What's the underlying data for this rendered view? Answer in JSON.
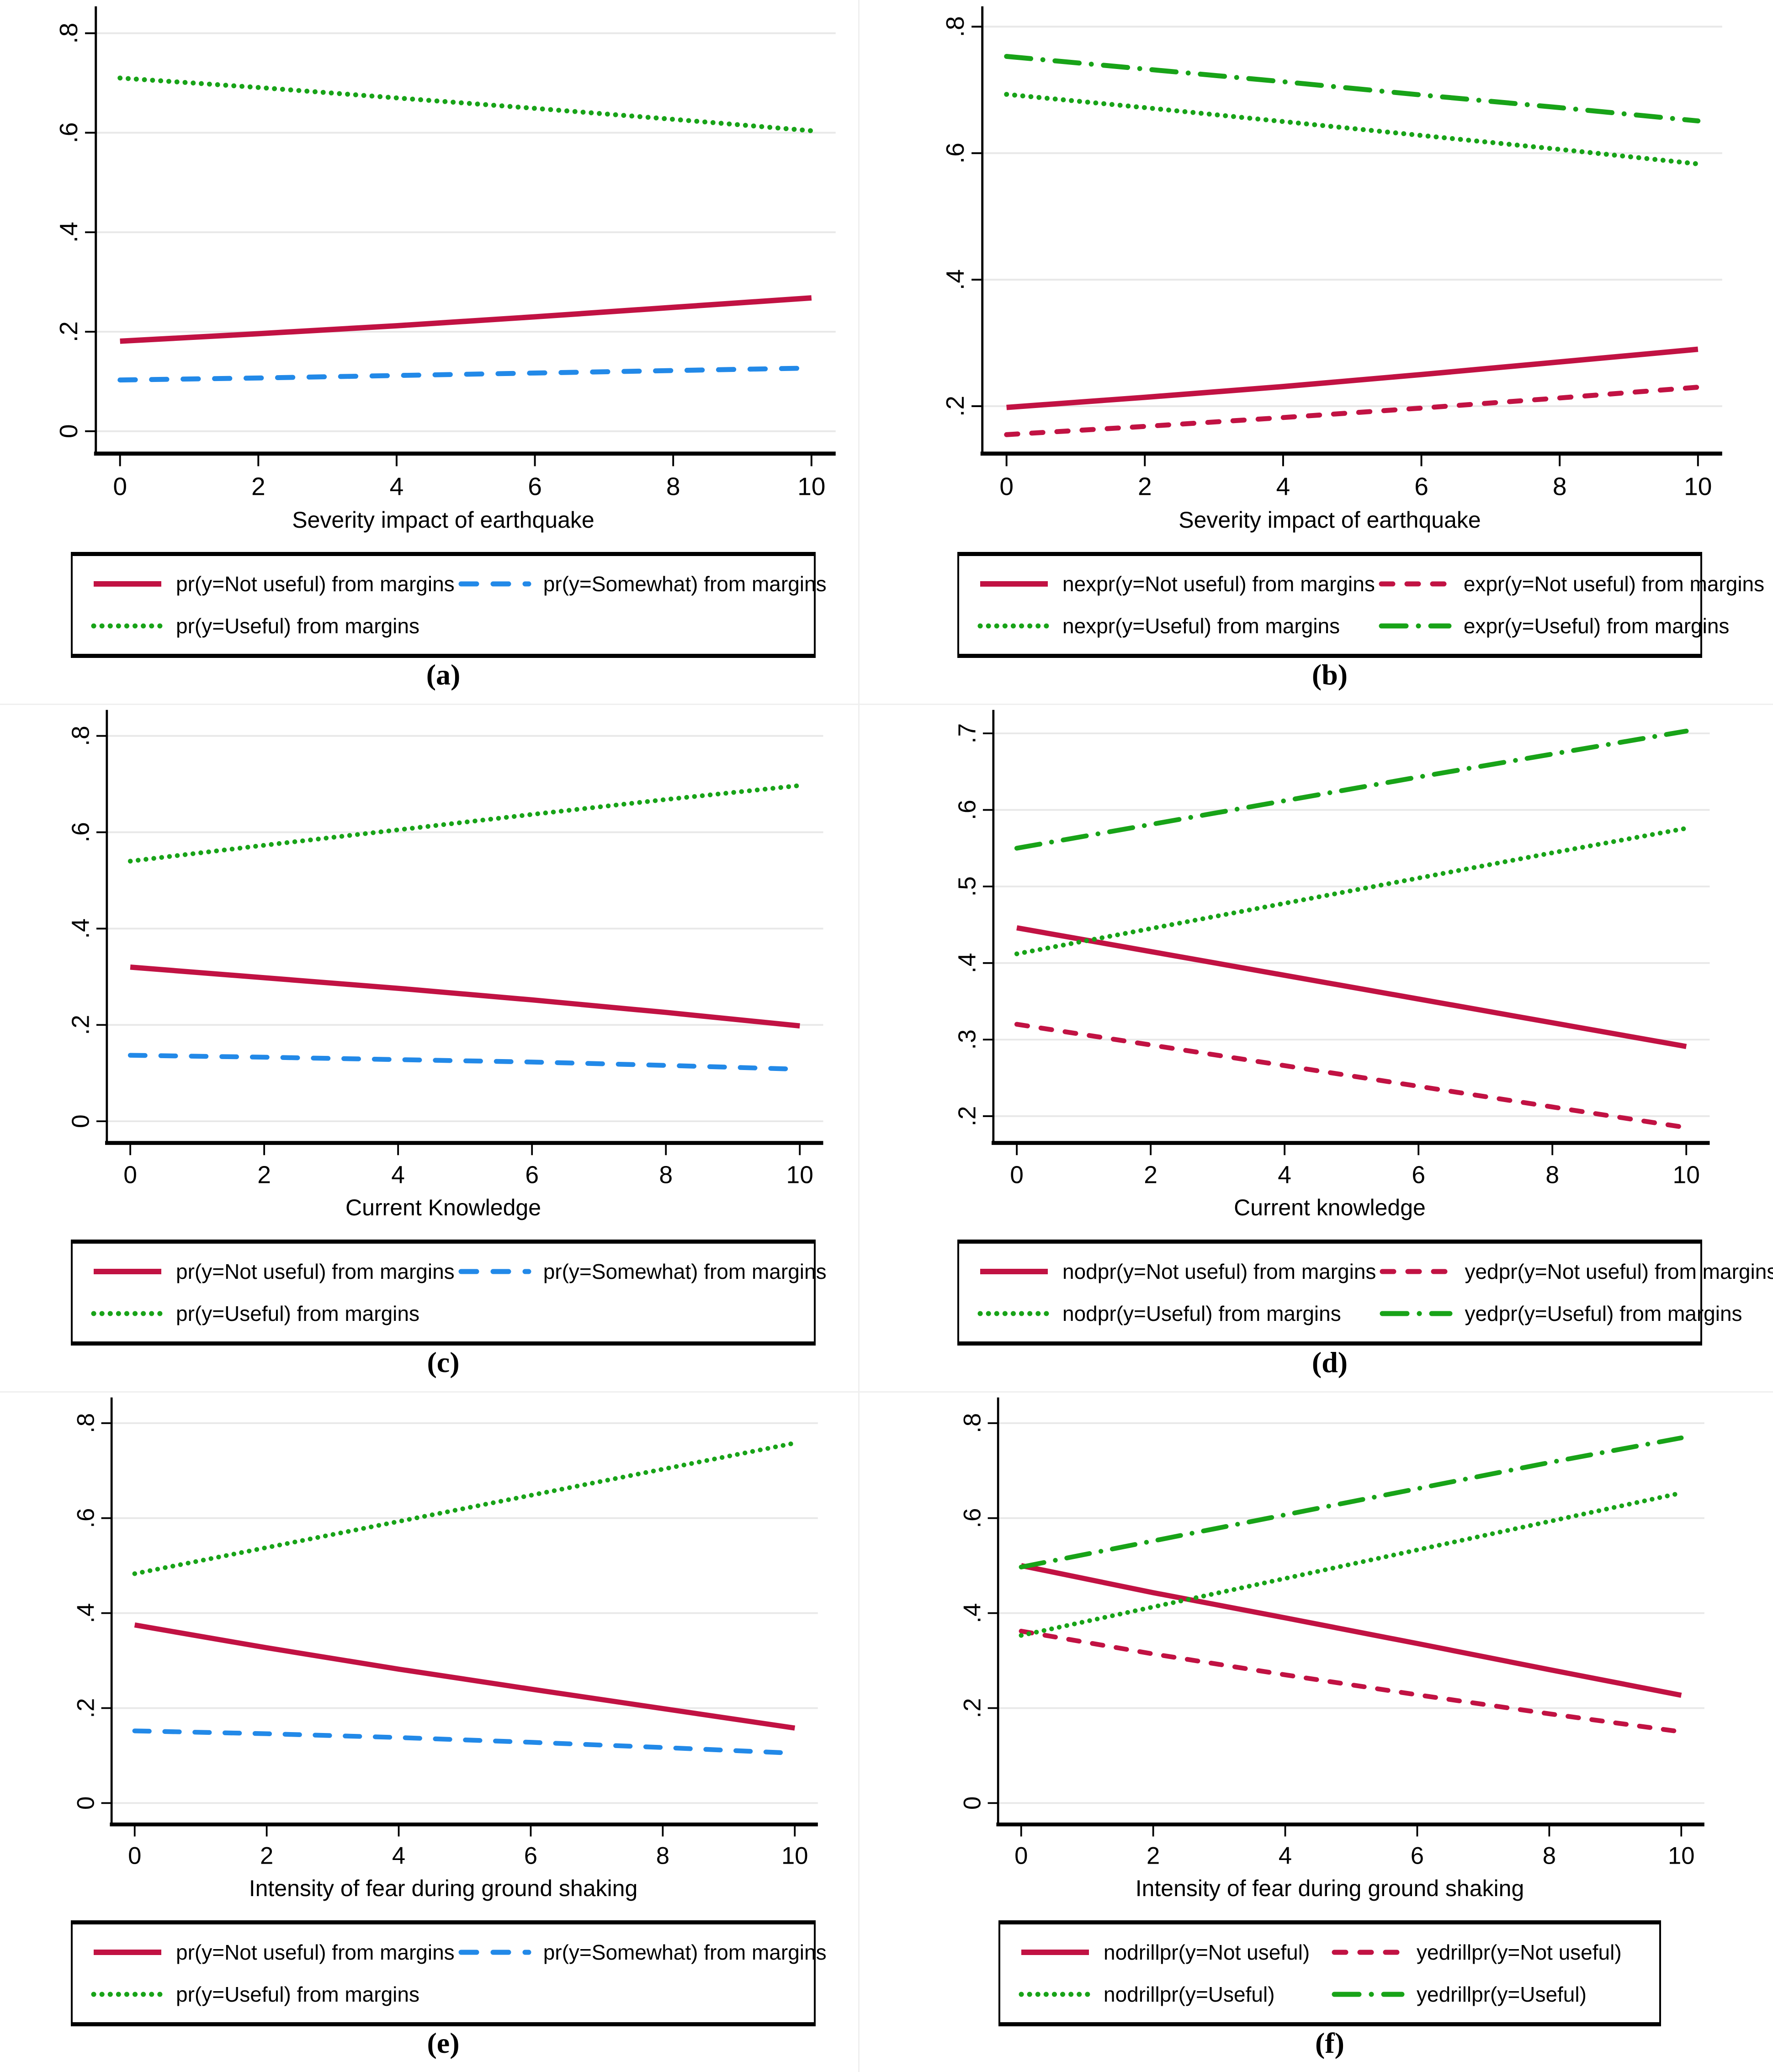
{
  "page": {
    "background": "#ffffff"
  },
  "colors": {
    "crimson": "#C11243",
    "green": "#18A318",
    "blue": "#2289E8",
    "gridline": "#E8E8E8",
    "axis": "#000000",
    "text": "#000000"
  },
  "chart_data": [
    {
      "panel": "a",
      "type": "line",
      "grid": true,
      "legend_position": "below",
      "xlabel": "Severity impact of earthquake",
      "caption": "(a)",
      "x": [
        0,
        2,
        4,
        6,
        8,
        10
      ],
      "xticks": [
        0,
        2,
        4,
        6,
        8,
        10
      ],
      "xtick_labels": [
        "0",
        "2",
        "4",
        "6",
        "8",
        "10"
      ],
      "xlim": [
        -0.35,
        10.35
      ],
      "yticks": [
        0,
        0.2,
        0.4,
        0.6,
        0.8
      ],
      "ytick_labels": [
        "0",
        ".2",
        ".4",
        ".6",
        ".8"
      ],
      "ylim": [
        -0.045,
        0.845
      ],
      "series": [
        {
          "name": "pr(y=Not useful) from margins",
          "color": "crimson",
          "dash": "solid",
          "values": [
            0.181,
            0.196,
            0.212,
            0.23,
            0.249,
            0.268
          ]
        },
        {
          "name": "pr(y=Somewhat) from margins",
          "color": "blue",
          "dash": "long-dash",
          "values": [
            0.103,
            0.107,
            0.112,
            0.117,
            0.122,
            0.127
          ]
        },
        {
          "name": "pr(y=Useful) from margins",
          "color": "green",
          "dash": "dot",
          "values": [
            0.71,
            0.691,
            0.67,
            0.649,
            0.627,
            0.604
          ]
        }
      ]
    },
    {
      "panel": "b",
      "type": "line",
      "grid": true,
      "legend_position": "below",
      "xlabel": "Severity impact of earthquake",
      "caption": "(b)",
      "x": [
        0,
        2,
        4,
        6,
        8,
        10
      ],
      "xticks": [
        0,
        2,
        4,
        6,
        8,
        10
      ],
      "xtick_labels": [
        "0",
        "2",
        "4",
        "6",
        "8",
        "10"
      ],
      "xlim": [
        -0.35,
        10.35
      ],
      "yticks": [
        0.2,
        0.4,
        0.6,
        0.8
      ],
      "ytick_labels": [
        ".2",
        ".4",
        ".6",
        ".8"
      ],
      "ylim": [
        0.125,
        0.825
      ],
      "series": [
        {
          "name": "nexpr(y=Not useful) from margins",
          "color": "crimson",
          "dash": "solid",
          "values": [
            0.198,
            0.214,
            0.231,
            0.25,
            0.27,
            0.29
          ]
        },
        {
          "name": "expr(y=Not useful) from margins",
          "color": "crimson",
          "dash": "dash",
          "values": [
            0.155,
            0.168,
            0.182,
            0.197,
            0.213,
            0.23
          ]
        },
        {
          "name": "nexpr(y=Useful) from margins",
          "color": "green",
          "dash": "dot",
          "values": [
            0.693,
            0.672,
            0.65,
            0.628,
            0.606,
            0.583
          ]
        },
        {
          "name": "expr(y=Useful) from margins",
          "color": "green",
          "dash": "dash-dot",
          "values": [
            0.753,
            0.733,
            0.713,
            0.692,
            0.672,
            0.651
          ]
        }
      ]
    },
    {
      "panel": "c",
      "type": "line",
      "grid": true,
      "legend_position": "below",
      "xlabel": "Current Knowledge",
      "caption": "(c)",
      "x": [
        0,
        2,
        4,
        6,
        8,
        10
      ],
      "xticks": [
        0,
        2,
        4,
        6,
        8,
        10
      ],
      "xtick_labels": [
        "0",
        "2",
        "4",
        "6",
        "8",
        "10"
      ],
      "xlim": [
        -0.35,
        10.35
      ],
      "yticks": [
        0,
        0.2,
        0.4,
        0.6,
        0.8
      ],
      "ytick_labels": [
        "0",
        ".2",
        ".4",
        ".6",
        ".8"
      ],
      "ylim": [
        -0.045,
        0.845
      ],
      "series": [
        {
          "name": "pr(y=Not useful) from margins",
          "color": "crimson",
          "dash": "solid",
          "values": [
            0.32,
            0.298,
            0.276,
            0.252,
            0.226,
            0.198
          ]
        },
        {
          "name": "pr(y=Somewhat) from margins",
          "color": "blue",
          "dash": "long-dash",
          "values": [
            0.137,
            0.133,
            0.128,
            0.123,
            0.116,
            0.108
          ]
        },
        {
          "name": "pr(y=Useful) from margins",
          "color": "green",
          "dash": "dot",
          "values": [
            0.54,
            0.573,
            0.605,
            0.637,
            0.668,
            0.697
          ]
        }
      ]
    },
    {
      "panel": "d",
      "type": "line",
      "grid": true,
      "legend_position": "below",
      "xlabel": "Current knowledge",
      "caption": "(d)",
      "x": [
        0,
        2,
        4,
        6,
        8,
        10
      ],
      "xticks": [
        0,
        2,
        4,
        6,
        8,
        10
      ],
      "xtick_labels": [
        "0",
        "2",
        "4",
        "6",
        "8",
        "10"
      ],
      "xlim": [
        -0.35,
        10.35
      ],
      "yticks": [
        0.2,
        0.3,
        0.4,
        0.5,
        0.6,
        0.7
      ],
      "ytick_labels": [
        ".2",
        ".3",
        ".4",
        ".5",
        ".6",
        ".7"
      ],
      "ylim": [
        0.165,
        0.725
      ],
      "series": [
        {
          "name": "nodpr(y=Not useful) from margins",
          "color": "crimson",
          "dash": "solid",
          "values": [
            0.446,
            0.415,
            0.384,
            0.353,
            0.322,
            0.291
          ]
        },
        {
          "name": "yedpr(y=Not useful) from margins",
          "color": "crimson",
          "dash": "dash",
          "values": [
            0.32,
            0.293,
            0.266,
            0.239,
            0.212,
            0.185
          ]
        },
        {
          "name": "nodpr(y=Useful) from margins",
          "color": "green",
          "dash": "dot",
          "values": [
            0.412,
            0.445,
            0.478,
            0.511,
            0.544,
            0.576
          ]
        },
        {
          "name": "yedpr(y=Useful) from margins",
          "color": "green",
          "dash": "dash-dot",
          "values": [
            0.55,
            0.581,
            0.612,
            0.643,
            0.673,
            0.703
          ]
        }
      ]
    },
    {
      "panel": "e",
      "type": "line",
      "grid": true,
      "legend_position": "below",
      "xlabel": "Intensity of fear during ground shaking",
      "caption": "(e)",
      "x": [
        0,
        2,
        4,
        6,
        8,
        10
      ],
      "xticks": [
        0,
        2,
        4,
        6,
        8,
        10
      ],
      "xtick_labels": [
        "0",
        "2",
        "4",
        "6",
        "8",
        "10"
      ],
      "xlim": [
        -0.35,
        10.35
      ],
      "yticks": [
        0,
        0.2,
        0.4,
        0.6,
        0.8
      ],
      "ytick_labels": [
        "0",
        ".2",
        ".4",
        ".6",
        ".8"
      ],
      "ylim": [
        -0.045,
        0.845
      ],
      "series": [
        {
          "name": "pr(y=Not useful) from margins",
          "color": "crimson",
          "dash": "solid",
          "values": [
            0.375,
            0.327,
            0.282,
            0.24,
            0.199,
            0.158
          ]
        },
        {
          "name": "pr(y=Somewhat) from margins",
          "color": "blue",
          "dash": "long-dash",
          "values": [
            0.152,
            0.146,
            0.138,
            0.128,
            0.117,
            0.105
          ]
        },
        {
          "name": "pr(y=Useful) from margins",
          "color": "green",
          "dash": "dot",
          "values": [
            0.483,
            0.538,
            0.593,
            0.648,
            0.703,
            0.758
          ]
        }
      ]
    },
    {
      "panel": "f",
      "type": "line",
      "grid": true,
      "legend_position": "below",
      "xlabel": "Intensity of fear during ground shaking",
      "caption": "(f)",
      "x": [
        0,
        2,
        4,
        6,
        8,
        10
      ],
      "xticks": [
        0,
        2,
        4,
        6,
        8,
        10
      ],
      "xtick_labels": [
        "0",
        "2",
        "4",
        "6",
        "8",
        "10"
      ],
      "xlim": [
        -0.35,
        10.35
      ],
      "yticks": [
        0,
        0.2,
        0.4,
        0.6,
        0.8
      ],
      "ytick_labels": [
        "0",
        ".2",
        ".4",
        ".6",
        ".8"
      ],
      "ylim": [
        -0.045,
        0.845
      ],
      "series": [
        {
          "name": "nodrillpr(y=Not useful)",
          "color": "crimson",
          "dash": "solid",
          "values": [
            0.5,
            0.443,
            0.39,
            0.336,
            0.281,
            0.227
          ]
        },
        {
          "name": "yedrillpr(y=Not useful)",
          "color": "crimson",
          "dash": "dash",
          "values": [
            0.362,
            0.314,
            0.27,
            0.228,
            0.188,
            0.15
          ]
        },
        {
          "name": "nodrillpr(y=Useful)",
          "color": "green",
          "dash": "dot",
          "values": [
            0.353,
            0.413,
            0.473,
            0.533,
            0.593,
            0.653
          ]
        },
        {
          "name": "yedrillpr(y=Useful)",
          "color": "green",
          "dash": "dash-dot",
          "values": [
            0.497,
            0.552,
            0.607,
            0.662,
            0.717,
            0.769
          ]
        }
      ]
    }
  ]
}
